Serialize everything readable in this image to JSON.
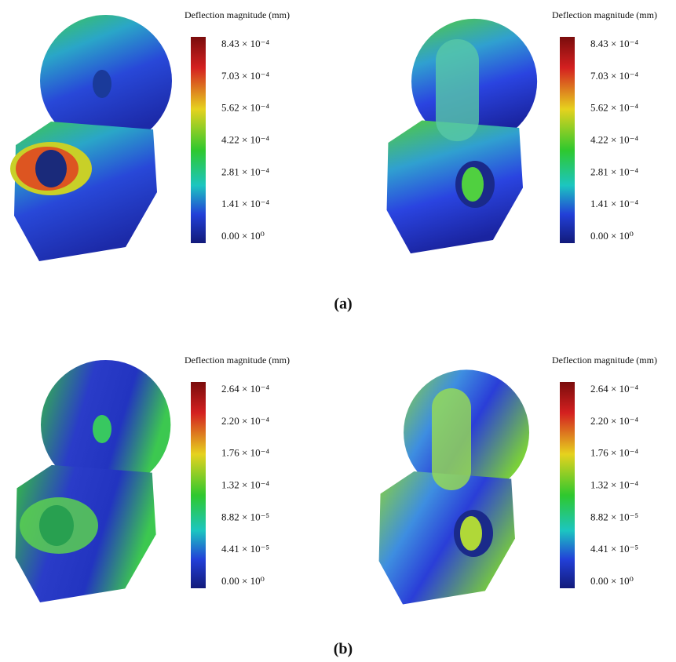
{
  "panels": [
    {
      "label": "(a)",
      "views": [
        {
          "legend_title": "Deflection magnitude (mm)",
          "ticks": [
            "8.43 × 10⁻⁴",
            "7.03 × 10⁻⁴",
            "5.62 × 10⁻⁴",
            "4.22 × 10⁻⁴",
            "2.81 × 10⁻⁴",
            "1.41 × 10⁻⁴",
            "0.00 × 10⁰"
          ]
        },
        {
          "legend_title": "Deflection magnitude (mm)",
          "ticks": [
            "8.43 × 10⁻⁴",
            "7.03 × 10⁻⁴",
            "5.62 × 10⁻⁴",
            "4.22 × 10⁻⁴",
            "2.81 × 10⁻⁴",
            "1.41 × 10⁻⁴",
            "0.00 × 10⁰"
          ]
        }
      ]
    },
    {
      "label": "(b)",
      "views": [
        {
          "legend_title": "Deflection magnitude (mm)",
          "ticks": [
            "2.64 × 10⁻⁴",
            "2.20 × 10⁻⁴",
            "1.76 × 10⁻⁴",
            "1.32 × 10⁻⁴",
            "8.82 × 10⁻⁵",
            "4.41 × 10⁻⁵",
            "0.00 × 10⁰"
          ]
        },
        {
          "legend_title": "Deflection magnitude (mm)",
          "ticks": [
            "2.64 × 10⁻⁴",
            "2.20 × 10⁻⁴",
            "1.76 × 10⁻⁴",
            "1.32 × 10⁻⁴",
            "8.82 × 10⁻⁵",
            "4.41 × 10⁻⁵",
            "0.00 × 10⁰"
          ]
        }
      ]
    }
  ]
}
